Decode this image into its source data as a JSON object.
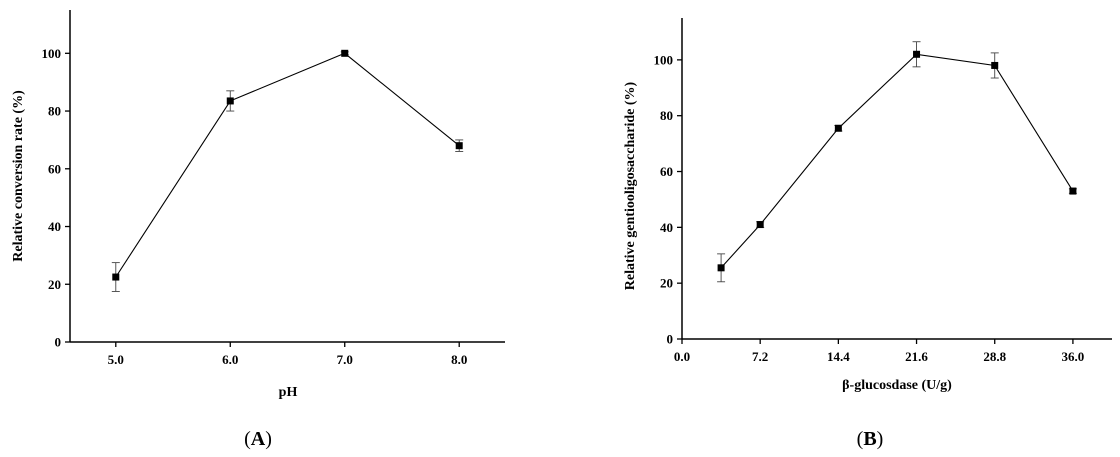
{
  "chart_data": [
    {
      "type": "line",
      "panel_label": "A",
      "xlabel": "pH",
      "ylabel": "Relative conversion rate (%)",
      "x_tick_labels": [
        "5.0",
        "6.0",
        "7.0",
        "8.0"
      ],
      "x": [
        5.0,
        6.0,
        7.0,
        8.0
      ],
      "xlim": [
        4.6,
        8.4
      ],
      "ylim": [
        0,
        115
      ],
      "y_ticks": [
        0,
        20,
        40,
        60,
        80,
        100
      ],
      "series": [
        {
          "values": [
            22.5,
            83.5,
            100.0,
            68.0
          ],
          "error": [
            5.0,
            3.5,
            0.5,
            2.0
          ]
        }
      ]
    },
    {
      "type": "line",
      "panel_label": "B",
      "xlabel": "β-glucosdase (U/g)",
      "ylabel": "Relative gentiooligosaccharide (%)",
      "x_tick_labels": [
        "0.0",
        "7.2",
        "14.4",
        "21.6",
        "28.8",
        "36.0"
      ],
      "x_ticks": [
        0.0,
        7.2,
        14.4,
        21.6,
        28.8,
        36.0
      ],
      "x": [
        3.6,
        7.2,
        14.4,
        21.6,
        28.8,
        36.0
      ],
      "xlim": [
        0,
        39.6
      ],
      "ylim": [
        0,
        115
      ],
      "y_ticks": [
        0,
        20,
        40,
        60,
        80,
        100
      ],
      "series": [
        {
          "values": [
            25.5,
            41.0,
            75.5,
            102.0,
            98.0,
            53.0
          ],
          "error": [
            5.0,
            1.0,
            1.0,
            4.5,
            4.5,
            0.8
          ]
        }
      ]
    }
  ]
}
